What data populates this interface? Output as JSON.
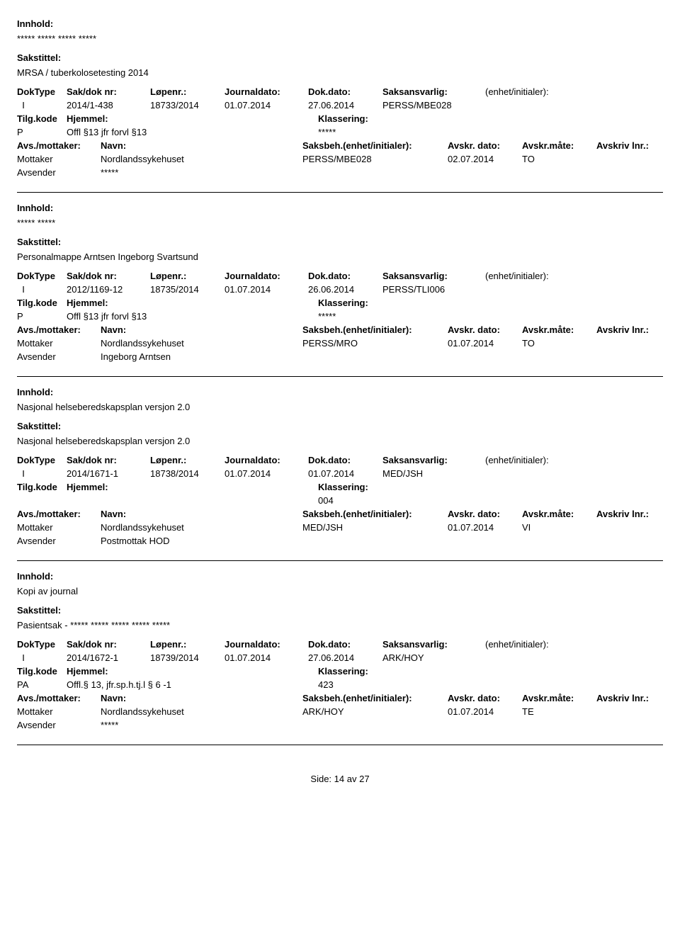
{
  "labels": {
    "innhold": "Innhold:",
    "sakstittel": "Sakstittel:",
    "doktype": "DokType",
    "sakdok": "Sak/dok nr:",
    "lopenr": "Løpenr.:",
    "journaldato": "Journaldato:",
    "dokdato": "Dok.dato:",
    "saksansvarlig": "Saksansvarlig:",
    "enhet": "(enhet/initialer):",
    "tilgkode": "Tilg.kode",
    "hjemmel": "Hjemmel:",
    "klassering": "Klassering:",
    "avsmottaker": "Avs./mottaker:",
    "navn": "Navn:",
    "saksbeh": "Saksbeh.(enhet/initialer):",
    "avskrdato": "Avskr. dato:",
    "avskrmate": "Avskr.måte:",
    "avskrivlnr": "Avskriv lnr.:",
    "mottaker": "Mottaker",
    "avsender": "Avsender"
  },
  "entries": [
    {
      "innhold": "***** ***** ***** *****",
      "sakstittel": "MRSA / tuberkolosetesting 2014",
      "doktype": "I",
      "sakdok": "2014/1-438",
      "lopenr": "18733/2014",
      "jdato": "01.07.2014",
      "ddato": "27.06.2014",
      "ansv": "PERSS/MBE028",
      "tilg": "P",
      "hjemmel": "Offl §13 jfr forvl §13",
      "klass": "*****",
      "mott_navn": "Nordlandssykehuset",
      "saksb": "PERSS/MBE028",
      "adato": "02.07.2014",
      "amate": "TO",
      "avs_navn": "*****"
    },
    {
      "innhold": "***** *****",
      "sakstittel": "Personalmappe Arntsen Ingeborg Svartsund",
      "doktype": "I",
      "sakdok": "2012/1169-12",
      "lopenr": "18735/2014",
      "jdato": "01.07.2014",
      "ddato": "26.06.2014",
      "ansv": "PERSS/TLI006",
      "tilg": "P",
      "hjemmel": "Offl §13 jfr forvl §13",
      "klass": "*****",
      "mott_navn": "Nordlandssykehuset",
      "saksb": "PERSS/MRO",
      "adato": "01.07.2014",
      "amate": "TO",
      "avs_navn": "Ingeborg Arntsen"
    },
    {
      "innhold": "Nasjonal helseberedskapsplan versjon 2.0",
      "sakstittel": "Nasjonal helseberedskapsplan versjon 2.0",
      "doktype": "I",
      "sakdok": "2014/1671-1",
      "lopenr": "18738/2014",
      "jdato": "01.07.2014",
      "ddato": "01.07.2014",
      "ansv": "MED/JSH",
      "tilg": "",
      "hjemmel": "",
      "klass": "004",
      "mott_navn": "Nordlandssykehuset",
      "saksb": "MED/JSH",
      "adato": "01.07.2014",
      "amate": "VI",
      "avs_navn": "Postmottak HOD"
    },
    {
      "innhold": "Kopi av journal",
      "sakstittel": "Pasientsak - ***** ***** ***** ***** *****",
      "doktype": "I",
      "sakdok": "2014/1672-1",
      "lopenr": "18739/2014",
      "jdato": "01.07.2014",
      "ddato": "27.06.2014",
      "ansv": "ARK/HOY",
      "tilg": "PA",
      "hjemmel": "Offl.§ 13, jfr.sp.h.tj.l § 6 -1",
      "klass": "423",
      "mott_navn": "Nordlandssykehuset",
      "saksb": "ARK/HOY",
      "adato": "01.07.2014",
      "amate": "TE",
      "avs_navn": "*****"
    }
  ],
  "footer": {
    "side": "Side:",
    "page": "14",
    "av": "av",
    "total": "27"
  }
}
